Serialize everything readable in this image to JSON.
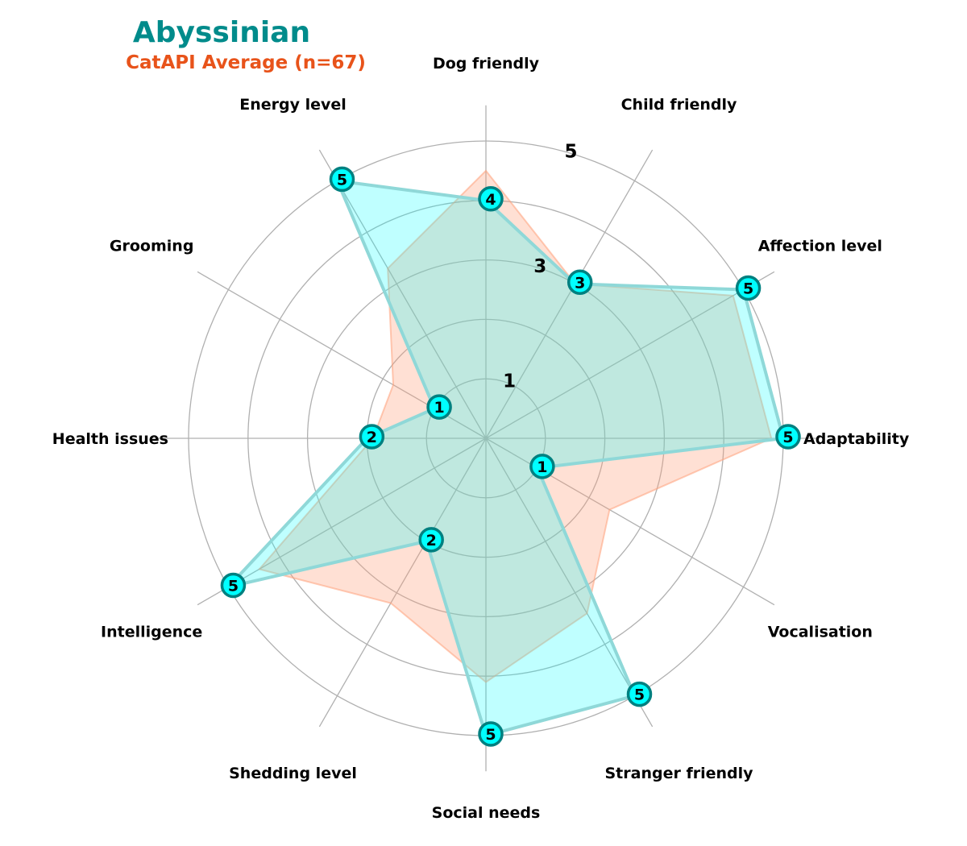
{
  "chart_data": {
    "type": "radar",
    "title": "Abyssinian",
    "subtitle": "CatAPI Average (n=67)",
    "categories": [
      "Dog friendly",
      "Child friendly",
      "Affection level",
      "Adaptability",
      "Vocalisation",
      "Stranger friendly",
      "Social needs",
      "Shedding level",
      "Intelligence",
      "Health issues",
      "Grooming",
      "Energy level"
    ],
    "rlim": [
      0,
      5
    ],
    "rticks": [
      1,
      2,
      3,
      4,
      5
    ],
    "rtick_labels": [
      "1",
      "",
      "3",
      "",
      "5"
    ],
    "grid": true,
    "series": [
      {
        "name": "Abyssinian",
        "values": [
          4,
          3,
          5,
          5,
          1,
          5,
          5,
          2,
          5,
          2,
          1,
          5
        ],
        "point_labels": [
          "4",
          "3",
          "5",
          "5",
          "1",
          "5",
          "5",
          "2",
          "5",
          "2",
          "1",
          "5"
        ]
      },
      {
        "name": "CatAPI Average (n=67)",
        "values": [
          4.5,
          3.0,
          4.8,
          4.8,
          2.4,
          3.4,
          4.1,
          3.2,
          4.4,
          1.9,
          1.8,
          3.3
        ]
      }
    ],
    "colors": {
      "title": "#008b8b",
      "subtitle": "#e8531a",
      "breed_fill": "#00ffff",
      "breed_edge": "#8fd8d8",
      "marker_fill": "#00ffff",
      "marker_edge": "#008080",
      "avg_fill": "#ffa07a",
      "grid": "#b0b0b0"
    }
  }
}
